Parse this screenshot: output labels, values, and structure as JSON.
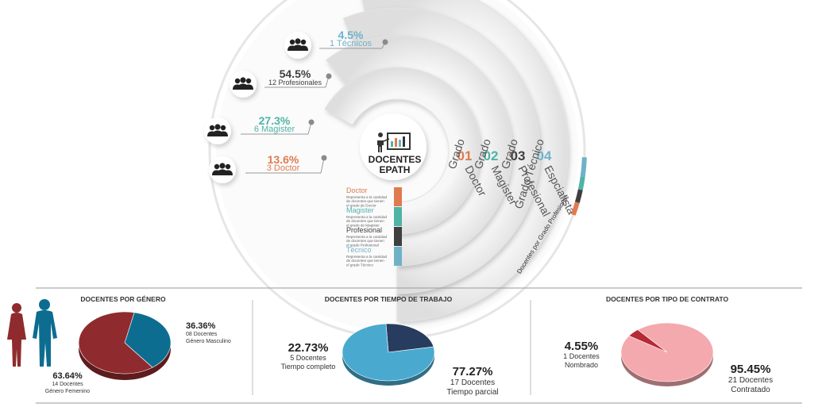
{
  "colors": {
    "doctor": "#e07a4f",
    "magister": "#4fb3a6",
    "profesional": "#3f3f3f",
    "tecnico": "#6fb2c8",
    "femenino": "#8f2b2e",
    "masculino": "#0c6d90",
    "tiempo_completo": "#273c5e",
    "tiempo_parcial": "#4aa9cf",
    "nombrado": "#b52a34",
    "contratado": "#f4a9ae"
  },
  "center": {
    "title_line1": "DOCENTES",
    "title_line2": "EPATH",
    "icon": "presentation-icon"
  },
  "callouts": [
    {
      "pct": "4.5%",
      "desc": "1 Técnicos",
      "color_key": "tecnico"
    },
    {
      "pct": "54.5%",
      "desc": "12 Profesionales",
      "color_key": "profesional"
    },
    {
      "pct": "27.3%",
      "desc": "6 Magister",
      "color_key": "magister"
    },
    {
      "pct": "13.6%",
      "desc": "3 Doctor",
      "color_key": "doctor"
    }
  ],
  "rings": [
    {
      "word": "Grado",
      "num": "01",
      "name": "Doctor",
      "color_key": "doctor"
    },
    {
      "word": "Grado",
      "num": "02",
      "name": "Magister",
      "color_key": "magister"
    },
    {
      "word": "Grado",
      "num": "03",
      "name": "Profesional",
      "color_key": "profesional"
    },
    {
      "word": "Grado Técnico",
      "num": "04",
      "name": "Espcialista",
      "color_key": "tecnico"
    }
  ],
  "arc_caption": "Docentes por Grado Profesional",
  "legend": [
    {
      "title": "Doctor",
      "desc": [
        "Representa a la cantidad",
        "de docentes que tienen",
        "el grado de Doctor"
      ],
      "color_key": "doctor"
    },
    {
      "title": "Magister",
      "desc": [
        "Representa a la cantidad",
        "de docentes que tienen",
        "el grado de Magister"
      ],
      "color_key": "magister"
    },
    {
      "title": "Profesional",
      "desc": [
        "Representa a la cantidad",
        "de docentes que tienen",
        "el grado Profesional"
      ],
      "color_key": "profesional"
    },
    {
      "title": "Técnico",
      "desc": [
        "Representa a la cantidad",
        "de docentes que tienen",
        "el grado Técnico"
      ],
      "color_key": "tecnico"
    }
  ],
  "people_icon": "people-group-icon",
  "gender_icon": "man-woman-silhouette-icon",
  "chart_data": [
    {
      "type": "radial-bar",
      "categories": [
        "Doctor",
        "Magister",
        "Profesional",
        "Técnicos"
      ],
      "values": [
        13.6,
        27.3,
        54.5,
        4.5
      ],
      "counts": [
        3,
        6,
        12,
        1
      ],
      "title": "DOCENTES EPATH"
    },
    {
      "type": "pie",
      "title": "DOCENTES POR GÉNERO",
      "slices": [
        {
          "label_pct": "36.36%",
          "value": 36.36,
          "line1": "08 Docentes",
          "line2": "Género Masculino",
          "color_key": "masculino"
        },
        {
          "label_pct": "63.64%",
          "value": 63.64,
          "line1": "14 Docentes",
          "line2": "Género Femenino",
          "color_key": "femenino"
        }
      ]
    },
    {
      "type": "pie",
      "title": "DOCENTES POR TIEMPO DE TRABAJO",
      "slices": [
        {
          "label_pct": "22.73%",
          "value": 22.73,
          "line1": "5 Docentes",
          "line2": "Tiempo completo",
          "color_key": "tiempo_completo"
        },
        {
          "label_pct": "77.27%",
          "value": 77.27,
          "line1": "17 Docentes",
          "line2": "Tiempo parcial",
          "color_key": "tiempo_parcial"
        }
      ]
    },
    {
      "type": "pie",
      "title": "DOCENTES POR TIPO DE CONTRATO",
      "slices": [
        {
          "label_pct": "4.55%",
          "value": 4.55,
          "line1": "1 Docentes",
          "line2": "Nombrado",
          "color_key": "nombrado"
        },
        {
          "label_pct": "95.45%",
          "value": 95.45,
          "line1": "21 Docentes",
          "line2": "Contratado",
          "color_key": "contratado"
        }
      ]
    }
  ]
}
